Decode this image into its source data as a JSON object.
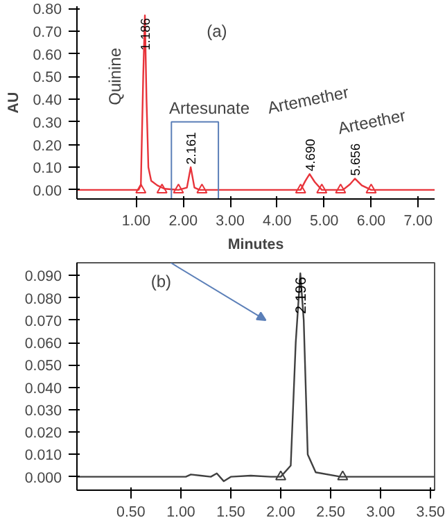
{
  "chart_data": [
    {
      "type": "line",
      "xlabel": "Minutes",
      "ylabel": "AU",
      "xlim": [
        -0.26,
        7.35
      ],
      "ylim": [
        -0.04,
        0.81
      ],
      "xticks": [
        {
          "value": 1,
          "label": "1.00"
        },
        {
          "value": 2,
          "label": "2.00"
        },
        {
          "value": 3,
          "label": "3.00"
        },
        {
          "value": 4,
          "label": "4.00"
        },
        {
          "value": 5,
          "label": "5.00"
        },
        {
          "value": 6,
          "label": "6.00"
        },
        {
          "value": 7,
          "label": "7.00"
        }
      ],
      "yticks": [
        {
          "value": 0,
          "label": "0.00"
        },
        {
          "value": 0.1,
          "label": "0.10"
        },
        {
          "value": 0.2,
          "label": "0.20"
        },
        {
          "value": 0.3,
          "label": "0.30"
        },
        {
          "value": 0.4,
          "label": "0.40"
        },
        {
          "value": 0.5,
          "label": "0.50"
        },
        {
          "value": 0.6,
          "label": "0.60"
        },
        {
          "value": 0.7,
          "label": "0.70"
        },
        {
          "value": 0.8,
          "label": "0.80"
        }
      ],
      "grid": false,
      "series": [
        {
          "color": "#e8333a",
          "x": [
            -0.26,
            1.05,
            1.1,
            1.15,
            1.186,
            1.22,
            1.26,
            1.32,
            1.45,
            1.6,
            1.9,
            2.08,
            2.161,
            2.24,
            2.35,
            4.5,
            4.6,
            4.69,
            4.8,
            4.95,
            5.4,
            5.55,
            5.656,
            5.8,
            6.0,
            7.35
          ],
          "values": [
            0,
            0,
            0.02,
            0.5,
            0.77,
            0.4,
            0.1,
            0.04,
            0.02,
            0.005,
            0,
            0.01,
            0.1,
            0.01,
            0,
            0,
            0.04,
            0.07,
            0.035,
            0,
            0,
            0.025,
            0.05,
            0.02,
            0,
            0
          ]
        },
        {
          "type": "scatter",
          "marker": "triangle",
          "color": "#e8333a",
          "x": [
            1.1,
            1.55,
            1.9,
            2.4,
            4.5,
            4.95,
            5.35,
            6.0
          ],
          "values": [
            0,
            0,
            0,
            0,
            0,
            0,
            0,
            0
          ]
        }
      ],
      "annotations": [
        {
          "text": "1.186",
          "x": 1.186,
          "y": 0.77
        },
        {
          "text": "2.161",
          "x": 2.161,
          "y": 0.1
        },
        {
          "text": "4.690",
          "x": 4.69,
          "y": 0.07
        },
        {
          "text": "5.656",
          "x": 5.656,
          "y": 0.05
        },
        "(a)",
        "Quinine",
        "Artesunate",
        "Artemether",
        "Arteether"
      ]
    },
    {
      "type": "line",
      "xlim": [
        -0.04,
        3.54
      ],
      "ylim": [
        -0.006,
        0.0957
      ],
      "xticks": [
        {
          "value": 0.5,
          "label": "0.50"
        },
        {
          "value": 1,
          "label": "1.00"
        },
        {
          "value": 1.5,
          "label": "1.50"
        },
        {
          "value": 2,
          "label": "2.00"
        },
        {
          "value": 2.5,
          "label": "2.50"
        },
        {
          "value": 3,
          "label": "3.00"
        },
        {
          "value": 3.5,
          "label": "3.50"
        }
      ],
      "yticks": [
        {
          "value": 0,
          "label": "0.000"
        },
        {
          "value": 0.01,
          "label": "0.010"
        },
        {
          "value": 0.02,
          "label": "0.020"
        },
        {
          "value": 0.03,
          "label": "0.030"
        },
        {
          "value": 0.04,
          "label": "0.040"
        },
        {
          "value": 0.05,
          "label": "0.050"
        },
        {
          "value": 0.06,
          "label": "0.060"
        },
        {
          "value": 0.07,
          "label": "0.070"
        },
        {
          "value": 0.08,
          "label": "0.080"
        },
        {
          "value": 0.09,
          "label": "0.090"
        }
      ],
      "grid": false,
      "series": [
        {
          "color": "#404040",
          "x": [
            -0.04,
            1.05,
            1.1,
            1.2,
            1.3,
            1.36,
            1.43,
            1.5,
            1.7,
            1.9,
            2.0,
            2.1,
            2.15,
            2.196,
            2.23,
            2.27,
            2.35,
            2.6,
            3.54
          ],
          "values": [
            0,
            0,
            0.001,
            0.0005,
            0,
            0.0015,
            -0.002,
            0,
            0.0005,
            0,
            0,
            0.005,
            0.06,
            0.091,
            0.07,
            0.01,
            0.002,
            0,
            0
          ]
        },
        {
          "type": "scatter",
          "marker": "triangle",
          "color": "#404040",
          "x": [
            2.0,
            2.62
          ],
          "values": [
            0,
            0
          ]
        }
      ],
      "annotations": [
        {
          "text": "2.196",
          "x": 2.196,
          "y": 0.091
        },
        "(b)"
      ]
    }
  ]
}
